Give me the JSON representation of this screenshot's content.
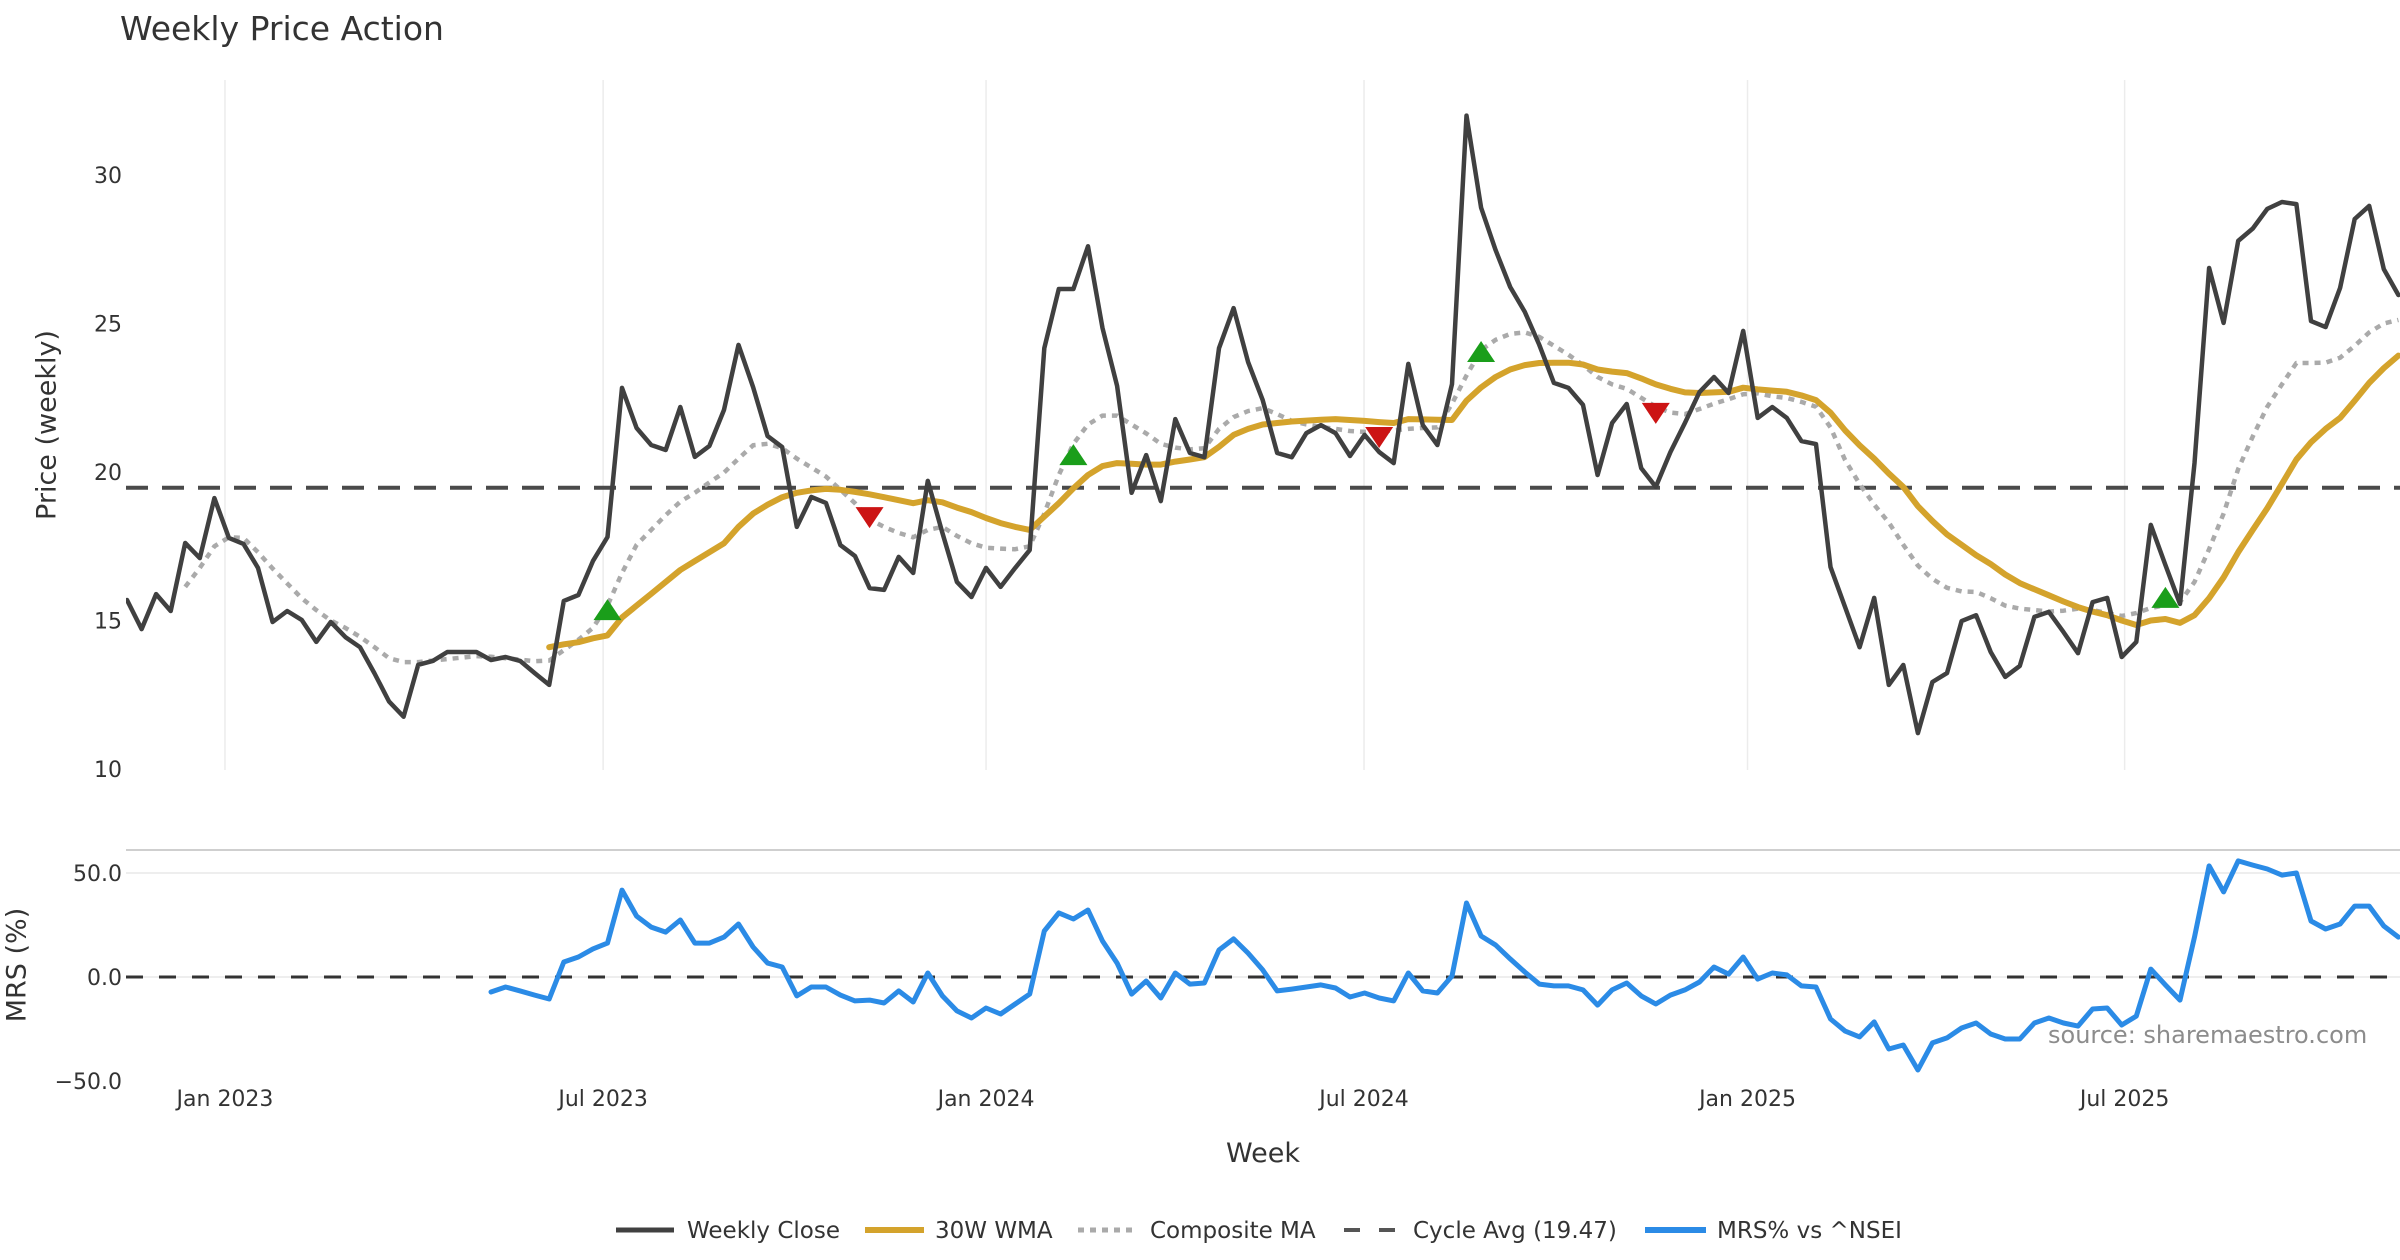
{
  "source": "source: sharemaestro.com",
  "chart_data": {
    "type": "line",
    "title": "Weekly Price Action",
    "xlabel": "Week",
    "legend_position": "bottom-center",
    "x_ticks": [
      {
        "label": "Jan 2023",
        "week": 6.73
      },
      {
        "label": "Jul 2023",
        "week": 32.7
      },
      {
        "label": "Jan 2024",
        "week": 59.0
      },
      {
        "label": "Jul 2024",
        "week": 84.96
      },
      {
        "label": "Jan 2025",
        "week": 111.3
      },
      {
        "label": "Jul 2025",
        "week": 137.2
      }
    ],
    "price_panel": {
      "ylabel": "Price (weekly)",
      "ylim": [
        10,
        33.2
      ],
      "grid": true,
      "yticks": [
        {
          "value": 10,
          "label": "10"
        },
        {
          "value": 15,
          "label": "15"
        },
        {
          "value": 20,
          "label": "20"
        },
        {
          "value": 25,
          "label": "25"
        },
        {
          "value": 30,
          "label": "30"
        }
      ]
    },
    "mrs_panel": {
      "ylabel": "MRS (%)",
      "ylim": [
        -50,
        60
      ],
      "yticks": [
        {
          "value": 50,
          "label": "50.0"
        },
        {
          "value": 0,
          "label": "0.0"
        },
        {
          "value": -50,
          "label": "−50.0"
        }
      ]
    },
    "series": [
      {
        "name": "Weekly Close",
        "color": "#404040",
        "start_week": 0,
        "values": [
          15.69,
          14.71,
          15.89,
          15.32,
          17.61,
          17.1,
          19.12,
          17.78,
          17.58,
          16.77,
          14.95,
          15.32,
          15.02,
          14.28,
          14.95,
          14.44,
          14.1,
          13.22,
          12.27,
          11.76,
          13.51,
          13.64,
          13.94,
          13.94,
          13.94,
          13.67,
          13.77,
          13.64,
          13.23,
          12.83,
          15.66,
          15.86,
          17.0,
          17.81,
          22.83,
          21.48,
          20.91,
          20.74,
          22.19,
          20.51,
          20.88,
          22.09,
          24.28,
          22.86,
          21.21,
          20.84,
          18.15,
          19.16,
          18.96,
          17.54,
          17.17,
          16.09,
          16.03,
          17.14,
          16.6,
          19.7,
          17.95,
          16.3,
          15.79,
          16.77,
          16.13,
          16.77,
          17.37,
          24.17,
          26.16,
          26.16,
          27.6,
          24.85,
          22.9,
          19.3,
          20.57,
          19.02,
          21.78,
          20.64,
          20.5,
          24.17,
          25.52,
          23.7,
          22.42,
          20.64,
          20.5,
          21.31,
          21.58,
          21.31,
          20.54,
          21.25,
          20.67,
          20.3,
          23.64,
          21.58,
          20.91,
          22.96,
          32.0,
          28.9,
          27.47,
          26.23,
          25.39,
          24.28,
          23.0,
          22.83,
          22.26,
          19.9,
          21.65,
          22.29,
          20.13,
          19.5,
          20.67,
          21.65,
          22.69,
          23.2,
          22.66,
          24.75,
          21.82,
          22.19,
          21.82,
          21.04,
          20.94,
          16.8,
          15.45,
          14.1,
          15.76,
          12.83,
          13.5,
          11.21,
          12.93,
          13.23,
          14.98,
          15.18,
          13.94,
          13.1,
          13.47,
          15.12,
          15.29,
          14.61,
          13.9,
          15.62,
          15.76,
          13.77,
          14.28,
          18.22,
          16.87,
          15.56,
          20.3,
          26.87,
          25.02,
          27.78,
          28.2,
          28.86,
          29.09,
          29.02,
          25.08,
          24.88,
          26.2,
          28.52,
          28.96,
          26.83,
          25.96
        ]
      },
      {
        "name": "30W WMA",
        "color": "#d4a32c",
        "start_week": 29,
        "values": [
          14.1,
          14.2,
          14.27,
          14.4,
          14.5,
          15.1,
          15.5,
          15.9,
          16.3,
          16.7,
          17.0,
          17.3,
          17.6,
          18.15,
          18.6,
          18.9,
          19.15,
          19.3,
          19.38,
          19.43,
          19.4,
          19.33,
          19.25,
          19.15,
          19.05,
          18.95,
          19.05,
          18.98,
          18.8,
          18.65,
          18.45,
          18.28,
          18.15,
          18.05,
          18.5,
          18.95,
          19.45,
          19.9,
          20.2,
          20.3,
          20.28,
          20.25,
          20.25,
          20.35,
          20.42,
          20.5,
          20.85,
          21.25,
          21.45,
          21.6,
          21.65,
          21.7,
          21.73,
          21.76,
          21.78,
          21.75,
          21.72,
          21.68,
          21.65,
          21.78,
          21.77,
          21.76,
          21.75,
          22.4,
          22.85,
          23.2,
          23.45,
          23.6,
          23.67,
          23.68,
          23.68,
          23.62,
          23.45,
          23.38,
          23.33,
          23.15,
          22.95,
          22.8,
          22.68,
          22.66,
          22.68,
          22.7,
          22.84,
          22.78,
          22.74,
          22.7,
          22.58,
          22.42,
          22.0,
          21.4,
          20.9,
          20.45,
          19.95,
          19.5,
          18.85,
          18.35,
          17.9,
          17.55,
          17.2,
          16.9,
          16.55,
          16.26,
          16.05,
          15.85,
          15.64,
          15.45,
          15.3,
          15.18,
          15.0,
          14.85,
          15.0,
          15.05,
          14.92,
          15.18,
          15.75,
          16.45,
          17.3,
          18.05,
          18.78,
          19.6,
          20.42,
          21.0,
          21.45,
          21.82,
          22.4,
          23.0,
          23.5,
          23.92
        ]
      },
      {
        "name": "Composite MA",
        "color": "#aaaaaa",
        "start_week": 4,
        "values": [
          16.13,
          16.77,
          17.5,
          17.8,
          17.78,
          17.3,
          16.75,
          16.25,
          15.75,
          15.35,
          15.0,
          14.75,
          14.45,
          14.1,
          13.73,
          13.6,
          13.6,
          13.65,
          13.7,
          13.75,
          13.8,
          13.78,
          13.73,
          13.68,
          13.63,
          13.65,
          14.0,
          14.35,
          14.75,
          15.5,
          16.6,
          17.55,
          18.05,
          18.55,
          19.0,
          19.3,
          19.65,
          19.98,
          20.45,
          20.9,
          20.95,
          20.8,
          20.45,
          20.15,
          19.85,
          19.4,
          18.95,
          18.4,
          18.15,
          17.95,
          17.8,
          18.05,
          18.15,
          17.85,
          17.6,
          17.45,
          17.42,
          17.4,
          17.5,
          18.6,
          19.9,
          20.95,
          21.6,
          21.9,
          21.9,
          21.6,
          21.3,
          20.95,
          20.82,
          20.76,
          20.8,
          21.45,
          21.85,
          22.05,
          22.15,
          21.95,
          21.72,
          21.6,
          21.52,
          21.45,
          21.38,
          21.35,
          21.37,
          21.4,
          21.45,
          21.48,
          21.5,
          22.3,
          23.25,
          24.1,
          24.45,
          24.65,
          24.7,
          24.55,
          24.25,
          23.95,
          23.6,
          23.2,
          22.95,
          22.8,
          22.5,
          22.2,
          22.0,
          21.95,
          22.12,
          22.3,
          22.45,
          22.62,
          22.65,
          22.55,
          22.49,
          22.36,
          22.2,
          21.5,
          20.4,
          19.6,
          18.9,
          18.3,
          17.55,
          16.85,
          16.4,
          16.1,
          15.98,
          15.96,
          15.75,
          15.5,
          15.4,
          15.35,
          15.3,
          15.33,
          15.4,
          15.35,
          15.25,
          15.15,
          15.25,
          15.42,
          15.52,
          15.62,
          16.3,
          17.4,
          18.6,
          20.1,
          21.2,
          22.2,
          22.95,
          23.67,
          23.67,
          23.68,
          23.85,
          24.25,
          24.7,
          25.0,
          25.12
        ]
      },
      {
        "name": "MRS% vs ^NSEI",
        "color": "#2b8be6",
        "start_week": 25,
        "panel": "mrs",
        "values": [
          -7.2,
          -4.8,
          -6.7,
          -8.7,
          -10.6,
          7.2,
          9.6,
          13.5,
          16.3,
          41.8,
          29.3,
          24.0,
          21.6,
          27.4,
          16.3,
          16.3,
          19.2,
          25.5,
          14.4,
          6.7,
          4.8,
          -9.1,
          -4.8,
          -4.8,
          -8.7,
          -11.5,
          -11.1,
          -12.5,
          -6.7,
          -12.0,
          1.9,
          -9.1,
          -16.3,
          -19.7,
          -14.9,
          -17.8,
          -13.0,
          -8.2,
          22.1,
          30.8,
          27.9,
          32.2,
          17.3,
          6.7,
          -8.2,
          -1.9,
          -10.1,
          1.9,
          -3.4,
          -2.9,
          13.0,
          18.3,
          11.5,
          3.4,
          -6.7,
          -5.8,
          -4.8,
          -3.8,
          -5.3,
          -9.6,
          -7.7,
          -10.1,
          -11.5,
          1.9,
          -6.7,
          -7.7,
          0.5,
          35.6,
          19.7,
          15.4,
          8.7,
          2.4,
          -3.4,
          -4.3,
          -4.3,
          -6.2,
          -13.5,
          -6.2,
          -2.9,
          -9.1,
          -13.0,
          -8.7,
          -6.2,
          -2.4,
          4.8,
          1.4,
          9.6,
          -1.0,
          1.9,
          1.0,
          -4.3,
          -4.8,
          -20.2,
          -26.0,
          -28.8,
          -21.6,
          -34.6,
          -32.7,
          -44.7,
          -31.7,
          -29.3,
          -24.5,
          -22.1,
          -27.4,
          -29.8,
          -29.8,
          -22.1,
          -19.7,
          -22.1,
          -23.6,
          -15.4,
          -14.9,
          -23.1,
          -18.8,
          3.8,
          -3.8,
          -11.1,
          19.2,
          53.4,
          40.9,
          55.8,
          53.8,
          51.9,
          49.0,
          50.0,
          26.9,
          23.1,
          25.5,
          34.1,
          34.1,
          24.5,
          19.2
        ]
      }
    ],
    "cycle_avg": {
      "label": "Cycle Avg (19.47)",
      "value": 19.47,
      "color": "#4a4a4a"
    },
    "buy_signals": [
      {
        "week": 33,
        "price": 15.35
      },
      {
        "week": 65,
        "price": 20.57
      },
      {
        "week": 93,
        "price": 24.04
      },
      {
        "week": 140,
        "price": 15.76
      }
    ],
    "sell_signals": [
      {
        "week": 51,
        "price": 18.48
      },
      {
        "week": 86,
        "price": 21.18
      },
      {
        "week": 105,
        "price": 21.99
      }
    ],
    "signal_colors": {
      "buy": "#1a9e1a",
      "sell": "#cc1414"
    },
    "mrs_zero_line_color": "#333333"
  }
}
